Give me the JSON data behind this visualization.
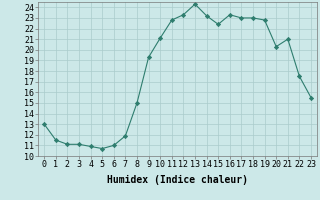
{
  "x": [
    0,
    1,
    2,
    3,
    4,
    5,
    6,
    7,
    8,
    9,
    10,
    11,
    12,
    13,
    14,
    15,
    16,
    17,
    18,
    19,
    20,
    21,
    22,
    23
  ],
  "y": [
    13,
    11.5,
    11.1,
    11.1,
    10.9,
    10.7,
    11.0,
    11.9,
    15.0,
    19.3,
    21.1,
    22.8,
    23.3,
    24.3,
    23.2,
    22.4,
    23.3,
    23.0,
    23.0,
    22.8,
    20.3,
    21.0,
    17.5,
    15.5
  ],
  "line_color": "#2e7d6e",
  "marker": "D",
  "marker_size": 2.2,
  "bg_color": "#cce8e8",
  "grid_color": "#aacccc",
  "xlabel": "Humidex (Indice chaleur)",
  "xlim": [
    -0.5,
    23.5
  ],
  "ylim": [
    10,
    24.5
  ],
  "yticks": [
    10,
    11,
    12,
    13,
    14,
    15,
    16,
    17,
    18,
    19,
    20,
    21,
    22,
    23,
    24
  ],
  "xticks": [
    0,
    1,
    2,
    3,
    4,
    5,
    6,
    7,
    8,
    9,
    10,
    11,
    12,
    13,
    14,
    15,
    16,
    17,
    18,
    19,
    20,
    21,
    22,
    23
  ],
  "xlabel_fontsize": 7,
  "tick_fontsize": 6
}
